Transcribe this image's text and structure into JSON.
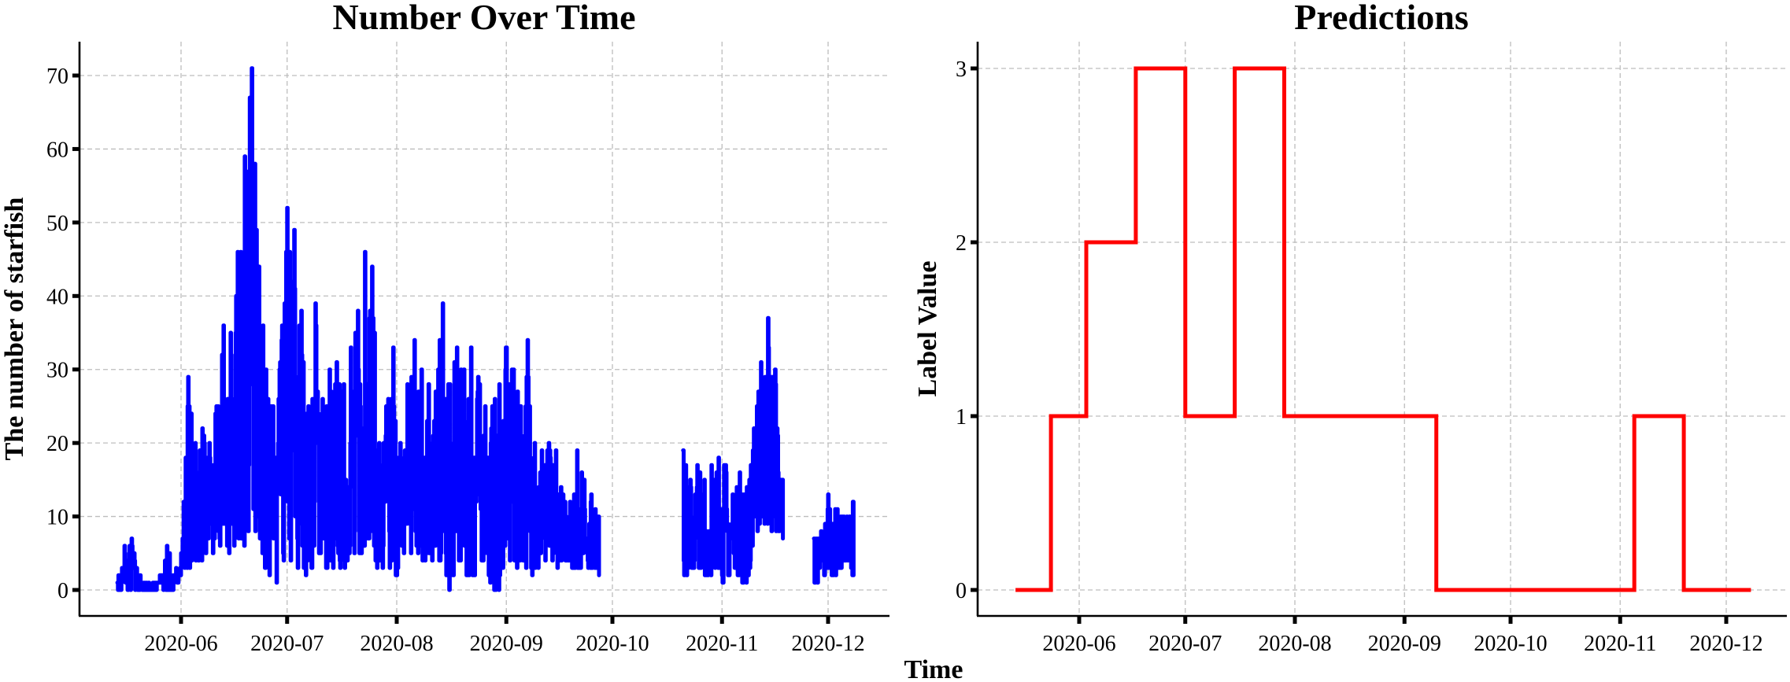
{
  "figure": {
    "shared_xlabel": "Time",
    "colors": {
      "series_left": "#0000ff",
      "series_right": "#ff0000",
      "grid": "#bdbdbd",
      "axis": "#000000"
    }
  },
  "left_chart": {
    "title": "Number Over Time",
    "ylabel": "The number of starfish",
    "yticks": [
      "0",
      "10",
      "20",
      "30",
      "40",
      "50",
      "60",
      "70"
    ],
    "xticks": [
      "2020-06",
      "2020-07",
      "2020-08",
      "2020-09",
      "2020-10",
      "2020-11",
      "2020-12"
    ]
  },
  "right_chart": {
    "title": "Predictions",
    "ylabel": "Label Value",
    "yticks": [
      "0",
      "1",
      "2",
      "3"
    ],
    "xticks": [
      "2020-06",
      "2020-07",
      "2020-08",
      "2020-09",
      "2020-10",
      "2020-11",
      "2020-12"
    ]
  },
  "chart_data": [
    {
      "type": "line",
      "title": "Number Over Time",
      "xlabel": "Time",
      "ylabel": "The number of starfish",
      "ylim": [
        -3.5,
        75
      ],
      "xlim": [
        "2020-05-09",
        "2020-12-16"
      ],
      "grid": true,
      "color": "#0000ff",
      "x_tick_labels": [
        "2020-06",
        "2020-07",
        "2020-08",
        "2020-09",
        "2020-10",
        "2020-11",
        "2020-12"
      ],
      "y_tick_labels": [
        0,
        10,
        20,
        30,
        40,
        50,
        60,
        70
      ],
      "note": "Dense noisy daily/hourly count series; values below are approximate envelope samples. Gaps from ~2020-09-28 to ~2020-10-21 and ~2020-11-19 to ~2020-11-27.",
      "segments": [
        {
          "start": "2020-05-14",
          "end": "2020-09-27",
          "x": [
            "2020-05-14",
            "2020-05-16",
            "2020-05-18",
            "2020-05-20",
            "2020-05-22",
            "2020-05-24",
            "2020-05-26",
            "2020-05-28",
            "2020-05-30",
            "2020-06-01",
            "2020-06-03",
            "2020-06-05",
            "2020-06-07",
            "2020-06-09",
            "2020-06-11",
            "2020-06-13",
            "2020-06-15",
            "2020-06-17",
            "2020-06-19",
            "2020-06-21",
            "2020-06-23",
            "2020-06-25",
            "2020-06-27",
            "2020-06-29",
            "2020-07-01",
            "2020-07-03",
            "2020-07-05",
            "2020-07-07",
            "2020-07-09",
            "2020-07-11",
            "2020-07-13",
            "2020-07-15",
            "2020-07-17",
            "2020-07-19",
            "2020-07-21",
            "2020-07-23",
            "2020-07-25",
            "2020-07-27",
            "2020-07-29",
            "2020-07-31",
            "2020-08-02",
            "2020-08-04",
            "2020-08-06",
            "2020-08-08",
            "2020-08-10",
            "2020-08-12",
            "2020-08-14",
            "2020-08-16",
            "2020-08-18",
            "2020-08-20",
            "2020-08-22",
            "2020-08-24",
            "2020-08-26",
            "2020-08-28",
            "2020-08-30",
            "2020-09-01",
            "2020-09-03",
            "2020-09-05",
            "2020-09-07",
            "2020-09-09",
            "2020-09-11",
            "2020-09-13",
            "2020-09-15",
            "2020-09-17",
            "2020-09-19",
            "2020-09-21",
            "2020-09-23",
            "2020-09-25",
            "2020-09-27"
          ],
          "max": [
            1,
            6,
            7,
            2,
            1,
            1,
            2,
            6,
            2,
            5,
            29,
            20,
            22,
            20,
            25,
            36,
            35,
            46,
            59,
            71,
            44,
            30,
            25,
            31,
            52,
            49,
            38,
            25,
            39,
            26,
            30,
            31,
            28,
            33,
            38,
            46,
            44,
            20,
            25,
            33,
            20,
            28,
            34,
            30,
            28,
            27,
            39,
            28,
            33,
            30,
            33,
            29,
            25,
            25,
            28,
            33,
            30,
            25,
            34,
            20,
            19,
            20,
            19,
            13,
            12,
            19,
            15,
            13,
            10
          ],
          "min": [
            0,
            0,
            0,
            0,
            0,
            0,
            0,
            0,
            0,
            2,
            3,
            4,
            4,
            5,
            5,
            6,
            5,
            7,
            6,
            10,
            6,
            3,
            0,
            2,
            6,
            1,
            4,
            1,
            5,
            4,
            2,
            4,
            2,
            5,
            4,
            5,
            8,
            0,
            5,
            0,
            4,
            5,
            5,
            4,
            3,
            5,
            3,
            0,
            4,
            3,
            0,
            4,
            4,
            0,
            0,
            5,
            2,
            4,
            3,
            2,
            4,
            4,
            3,
            4,
            4,
            2,
            4,
            3,
            2
          ]
        },
        {
          "start": "2020-10-21",
          "end": "2020-11-18",
          "x": [
            "2020-10-21",
            "2020-10-23",
            "2020-10-25",
            "2020-10-27",
            "2020-10-29",
            "2020-10-31",
            "2020-11-02",
            "2020-11-04",
            "2020-11-06",
            "2020-11-08",
            "2020-11-10",
            "2020-11-12",
            "2020-11-14",
            "2020-11-16",
            "2020-11-18"
          ],
          "max": [
            19,
            15,
            17,
            15,
            17,
            18,
            17,
            13,
            16,
            14,
            22,
            31,
            37,
            30,
            15
          ],
          "min": [
            2,
            2,
            3,
            2,
            2,
            3,
            0,
            3,
            2,
            0,
            7,
            9,
            8,
            8,
            7
          ]
        },
        {
          "start": "2020-11-27",
          "end": "2020-12-08",
          "x": [
            "2020-11-27",
            "2020-11-29",
            "2020-12-01",
            "2020-12-03",
            "2020-12-05",
            "2020-12-07",
            "2020-12-08"
          ],
          "max": [
            7,
            8,
            13,
            11,
            10,
            10,
            12
          ],
          "min": [
            1,
            1,
            2,
            2,
            3,
            4,
            2
          ]
        }
      ]
    },
    {
      "type": "line",
      "step": true,
      "title": "Predictions",
      "xlabel": "Time",
      "ylabel": "Label Value",
      "ylim": [
        -0.15,
        3.25
      ],
      "xlim": [
        "2020-05-09",
        "2020-12-16"
      ],
      "grid": true,
      "color": "#ff0000",
      "x_tick_labels": [
        "2020-06",
        "2020-07",
        "2020-08",
        "2020-09",
        "2020-10",
        "2020-11",
        "2020-12"
      ],
      "y_tick_labels": [
        0,
        1,
        2,
        3
      ],
      "x": [
        "2020-05-14",
        "2020-05-24",
        "2020-06-03",
        "2020-06-17",
        "2020-07-01",
        "2020-07-15",
        "2020-07-29",
        "2020-09-10",
        "2020-11-05",
        "2020-11-19",
        "2020-12-08"
      ],
      "values": [
        0,
        1,
        2,
        3,
        1,
        3,
        1,
        0,
        1,
        0,
        0
      ]
    }
  ]
}
